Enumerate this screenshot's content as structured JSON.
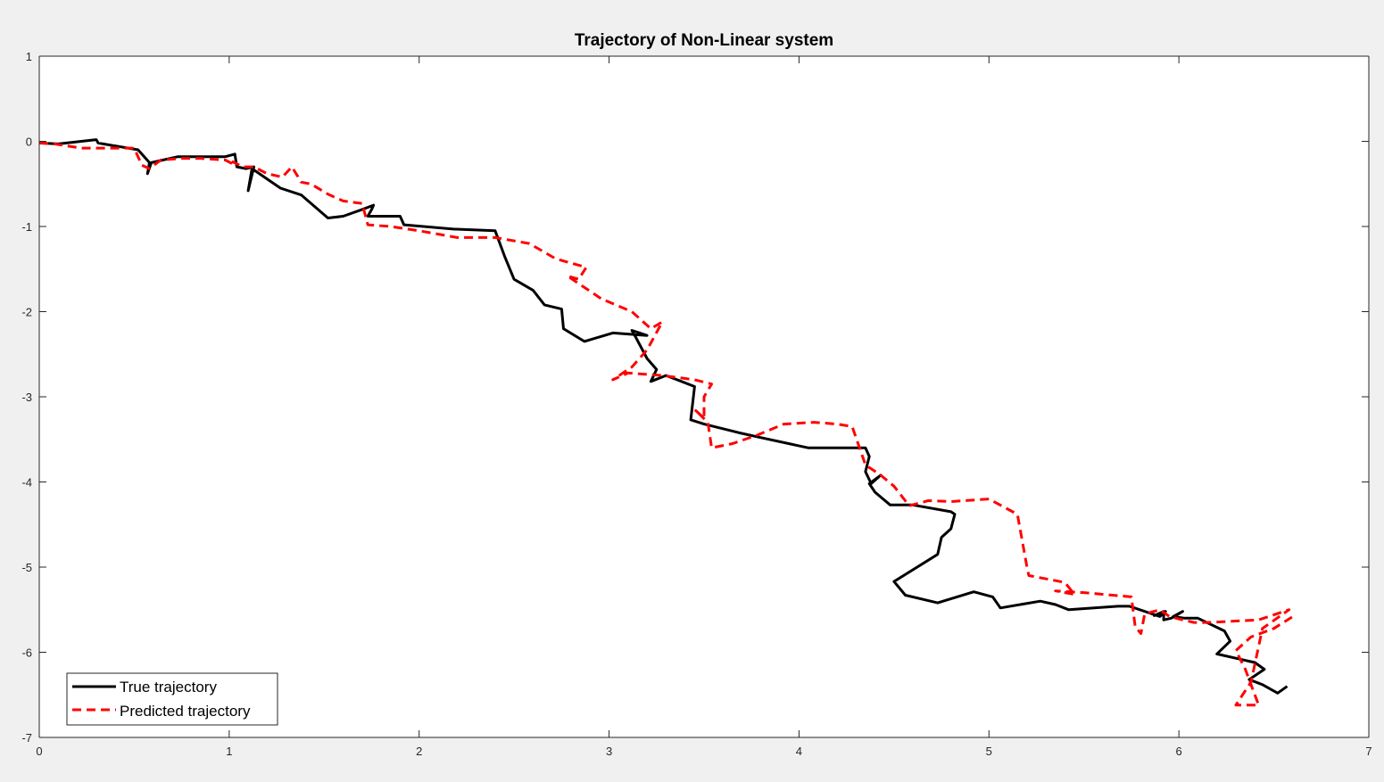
{
  "chart_data": {
    "type": "line",
    "title": "Trajectory of Non-Linear system",
    "xlabel": "",
    "ylabel": "",
    "xlim": [
      0,
      7
    ],
    "ylim": [
      -7,
      1
    ],
    "xticks": [
      "0",
      "1",
      "2",
      "3",
      "4",
      "5",
      "6",
      "7"
    ],
    "yticks": [
      "1",
      "0",
      "-1",
      "-2",
      "-3",
      "-4",
      "-5",
      "-6",
      "-7"
    ],
    "grid": false,
    "legend_position": "bottom-left",
    "series": [
      {
        "name": "True trajectory",
        "color": "#000000",
        "style": "solid",
        "x": [
          0.0,
          0.1,
          0.3,
          0.31,
          0.52,
          0.58,
          0.57,
          0.59,
          0.73,
          0.98,
          1.03,
          1.04,
          1.09,
          1.13,
          1.1,
          1.12,
          1.27,
          1.38,
          1.52,
          1.6,
          1.7,
          1.76,
          1.75,
          1.73,
          1.9,
          1.92,
          2.18,
          2.4,
          2.45,
          2.5,
          2.6,
          2.66,
          2.75,
          2.76,
          2.87,
          3.02,
          3.2,
          3.12,
          3.14,
          3.2,
          3.25,
          3.22,
          3.3,
          3.45,
          3.43,
          3.5,
          3.68,
          3.8,
          4.05,
          4.35,
          4.37,
          4.35,
          4.38,
          4.43,
          4.37,
          4.4,
          4.48,
          4.6,
          4.8,
          4.82,
          4.8,
          4.75,
          4.73,
          4.5,
          4.56,
          4.73,
          4.92,
          5.02,
          5.06,
          5.27,
          5.35,
          5.42,
          5.68,
          5.74,
          5.9,
          5.93,
          5.87,
          5.92,
          5.92,
          5.96,
          6.02,
          5.97,
          6.03,
          6.1,
          6.24,
          6.27,
          6.2,
          6.4,
          6.45,
          6.37,
          6.44,
          6.52,
          6.57
        ],
        "y": [
          -0.02,
          -0.03,
          0.02,
          -0.02,
          -0.1,
          -0.25,
          -0.38,
          -0.25,
          -0.18,
          -0.18,
          -0.15,
          -0.3,
          -0.32,
          -0.3,
          -0.58,
          -0.32,
          -0.55,
          -0.63,
          -0.9,
          -0.88,
          -0.8,
          -0.75,
          -0.8,
          -0.88,
          -0.88,
          -0.98,
          -1.03,
          -1.05,
          -1.35,
          -1.62,
          -1.75,
          -1.92,
          -1.97,
          -2.2,
          -2.35,
          -2.25,
          -2.28,
          -2.22,
          -2.3,
          -2.55,
          -2.68,
          -2.82,
          -2.75,
          -2.88,
          -3.27,
          -3.32,
          -3.42,
          -3.48,
          -3.6,
          -3.6,
          -3.7,
          -3.88,
          -4.02,
          -3.92,
          -4.02,
          -4.12,
          -4.27,
          -4.27,
          -4.35,
          -4.38,
          -4.55,
          -4.65,
          -4.85,
          -5.17,
          -5.33,
          -5.42,
          -5.29,
          -5.35,
          -5.48,
          -5.4,
          -5.44,
          -5.5,
          -5.46,
          -5.46,
          -5.58,
          -5.52,
          -5.57,
          -5.52,
          -5.62,
          -5.6,
          -5.52,
          -5.58,
          -5.6,
          -5.6,
          -5.75,
          -5.87,
          -6.02,
          -6.12,
          -6.2,
          -6.32,
          -6.38,
          -6.48,
          -6.4
        ]
      },
      {
        "name": "Predicted trajectory",
        "color": "#ff0000",
        "style": "dashed",
        "x": [
          0.0,
          0.08,
          0.22,
          0.32,
          0.38,
          0.5,
          0.54,
          0.58,
          0.64,
          0.75,
          0.85,
          0.98,
          1.03,
          1.02,
          1.07,
          1.13,
          1.2,
          1.28,
          1.33,
          1.38,
          1.43,
          1.52,
          1.6,
          1.7,
          1.73,
          1.85,
          2.0,
          2.2,
          2.4,
          2.58,
          2.72,
          2.88,
          2.84,
          2.78,
          2.96,
          3.12,
          3.22,
          3.28,
          3.2,
          3.12,
          3.02,
          3.1,
          3.28,
          3.45,
          3.54,
          3.5,
          3.5,
          3.45,
          3.52,
          3.54,
          3.65,
          3.78,
          3.92,
          4.08,
          4.2,
          4.28,
          4.35,
          4.43,
          4.5,
          4.58,
          4.68,
          4.8,
          5.0,
          5.15,
          5.2,
          5.21,
          5.4,
          5.45,
          5.35,
          5.5,
          5.75,
          5.77,
          5.8,
          5.82,
          5.9,
          5.95,
          6.02,
          6.08,
          6.15,
          6.42,
          6.58,
          6.44,
          6.38,
          6.3,
          6.42,
          6.35,
          6.3,
          6.38,
          6.5,
          6.6
        ],
        "y": [
          -0.02,
          -0.03,
          -0.08,
          -0.08,
          -0.08,
          -0.08,
          -0.28,
          -0.32,
          -0.22,
          -0.2,
          -0.2,
          -0.22,
          -0.28,
          -0.24,
          -0.3,
          -0.3,
          -0.38,
          -0.42,
          -0.3,
          -0.48,
          -0.5,
          -0.62,
          -0.7,
          -0.73,
          -0.98,
          -1.0,
          -1.05,
          -1.13,
          -1.13,
          -1.2,
          -1.38,
          -1.48,
          -1.62,
          -1.58,
          -1.85,
          -2.0,
          -2.2,
          -2.12,
          -2.45,
          -2.65,
          -2.8,
          -2.72,
          -2.75,
          -2.8,
          -2.85,
          -3.0,
          -3.25,
          -3.15,
          -3.3,
          -3.6,
          -3.55,
          -3.45,
          -3.32,
          -3.3,
          -3.32,
          -3.35,
          -3.8,
          -3.92,
          -4.05,
          -4.28,
          -4.22,
          -4.23,
          -4.2,
          -4.38,
          -5.0,
          -5.1,
          -5.18,
          -5.32,
          -5.28,
          -5.3,
          -5.35,
          -5.7,
          -5.78,
          -5.55,
          -5.5,
          -5.58,
          -5.62,
          -5.65,
          -5.65,
          -5.62,
          -5.5,
          -5.72,
          -6.35,
          -6.62,
          -6.62,
          -6.2,
          -5.98,
          -5.82,
          -5.72,
          -5.58
        ]
      }
    ]
  }
}
